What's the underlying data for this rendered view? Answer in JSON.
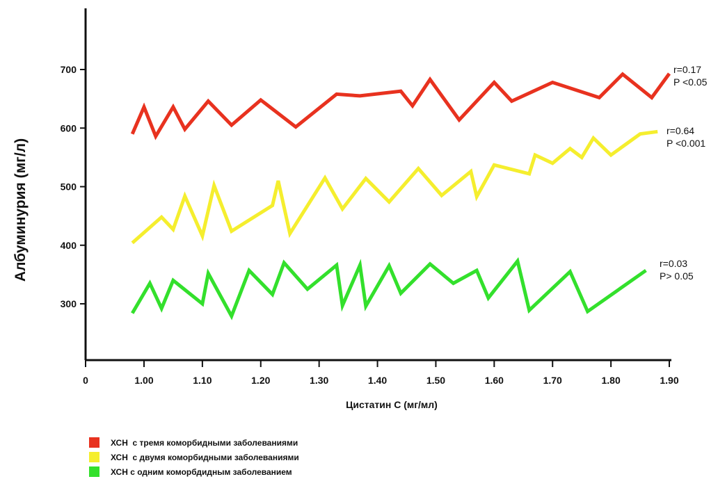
{
  "chart_data": {
    "type": "line",
    "xlabel": "Цистатин С (мг/мл)",
    "ylabel": "Албуминурия (мг/л)",
    "xlim": [
      0,
      1.9
    ],
    "ylim": [
      200,
      800
    ],
    "x_ticks": [
      "0",
      "1.00",
      "1.10",
      "1.20",
      "1.30",
      "1.40",
      "1.50",
      "1.60",
      "1.70",
      "1.80",
      "1.90"
    ],
    "x_tick_values": [
      0,
      1.0,
      1.1,
      1.2,
      1.3,
      1.4,
      1.5,
      1.6,
      1.7,
      1.8,
      1.9
    ],
    "y_ticks": [
      "300",
      "400",
      "500",
      "600",
      "700"
    ],
    "y_tick_values": [
      300,
      400,
      500,
      600,
      700
    ],
    "grid": false,
    "legend_position": "bottom-left",
    "series": [
      {
        "name": "ХСН  с тремя коморбидными заболеваниями",
        "color": "#e8321f",
        "x": [
          0.98,
          1.0,
          1.02,
          1.05,
          1.07,
          1.11,
          1.15,
          1.2,
          1.26,
          1.33,
          1.37,
          1.44,
          1.46,
          1.49,
          1.54,
          1.6,
          1.63,
          1.7,
          1.78,
          1.82,
          1.87,
          1.9
        ],
        "y": [
          590,
          636,
          586,
          636,
          598,
          646,
          605,
          648,
          602,
          658,
          655,
          663,
          638,
          683,
          614,
          678,
          646,
          678,
          652,
          692,
          652,
          693
        ]
      },
      {
        "name": "ХСН  с двумя коморбидными заболеваниями",
        "color": "#f5ee2e",
        "x": [
          0.98,
          1.03,
          1.05,
          1.07,
          1.1,
          1.12,
          1.15,
          1.22,
          1.23,
          1.25,
          1.31,
          1.34,
          1.38,
          1.42,
          1.47,
          1.51,
          1.56,
          1.57,
          1.6,
          1.66,
          1.67,
          1.7,
          1.73,
          1.75,
          1.77,
          1.8,
          1.85,
          1.88
        ],
        "y": [
          404,
          448,
          427,
          484,
          416,
          502,
          424,
          468,
          510,
          420,
          515,
          462,
          514,
          474,
          531,
          485,
          526,
          483,
          537,
          522,
          554,
          540,
          565,
          550,
          583,
          554,
          590,
          594
        ]
      },
      {
        "name": "ХСН с одним коморбдидным заболеванием",
        "color": "#33e02c",
        "x": [
          0.98,
          1.01,
          1.03,
          1.05,
          1.1,
          1.11,
          1.15,
          1.18,
          1.22,
          1.24,
          1.28,
          1.33,
          1.34,
          1.37,
          1.38,
          1.42,
          1.44,
          1.49,
          1.53,
          1.57,
          1.59,
          1.64,
          1.66,
          1.73,
          1.76,
          1.86
        ],
        "y": [
          284,
          335,
          292,
          340,
          300,
          352,
          279,
          357,
          316,
          370,
          325,
          366,
          297,
          366,
          296,
          365,
          318,
          368,
          335,
          357,
          310,
          373,
          289,
          355,
          287,
          357
        ]
      }
    ],
    "annotations": [
      {
        "lines": [
          "r=0.17",
          "P <0.05"
        ],
        "series": 0
      },
      {
        "lines": [
          "r=0.64",
          "P <0.001"
        ],
        "series": 1
      },
      {
        "lines": [
          "r=0.03",
          "P> 0.05"
        ],
        "series": 2
      }
    ]
  }
}
